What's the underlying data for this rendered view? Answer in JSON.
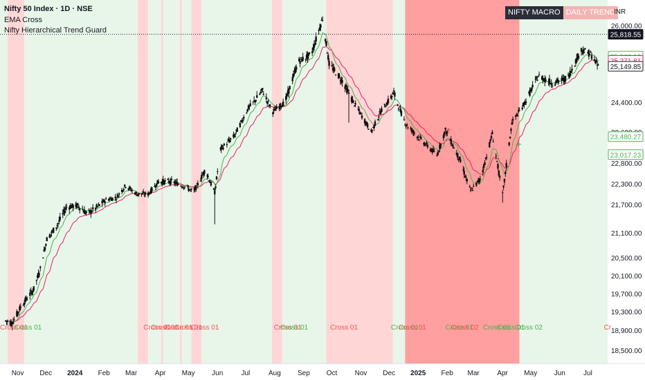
{
  "header": {
    "symbol_line": "Nifty 50 Index · 1D · NSE",
    "indicator_1": "EMA Cross",
    "indicator_2": "Nifty Hierarchical Trend Guard"
  },
  "badge": {
    "macro": "NIFTY MACRO",
    "daily": "DAILY TREND"
  },
  "currency": "INR",
  "colors": {
    "bull_bg": "#e8f5e9",
    "bear_bg": "#ffd6d6",
    "strong_bear_bg": "#ff9f9f",
    "up_candle": "#111111",
    "ema_fast": "#4caf50",
    "ema_slow": "#e91e63",
    "cross_bear_text": "#ef5350",
    "cross_bull_text": "#4caf50"
  },
  "chart_data": {
    "type": "candlestick",
    "y_axis": {
      "ticks": [
        26000,
        24400,
        23600,
        22800,
        22300,
        21700,
        21100,
        20500,
        20100,
        19700,
        19300,
        18900,
        18500
      ],
      "tick_labels": [
        "26,000.00",
        "24,400.00",
        "23,600.00",
        "22,800.00",
        "22,300.00",
        "21,700.00",
        "21,100.00",
        "20,500.00",
        "20,100.00",
        "19,700.00",
        "19,300.00",
        "18,900.00",
        "18,500.00"
      ]
    },
    "x_axis": {
      "labels": [
        "Nov",
        "Dec",
        "2024",
        "Feb",
        "Mar",
        "Apr",
        "May",
        "Jun",
        "Jul",
        "Aug",
        "Sep",
        "Oct",
        "Nov",
        "Dec",
        "2025",
        "Feb",
        "Mar",
        "Apr",
        "May",
        "Jun",
        "Jul"
      ],
      "bold": [
        "2024",
        "2025"
      ]
    },
    "price_tags": [
      {
        "value": "25,818.55",
        "price": 25818.55,
        "style": "dark"
      },
      {
        "value": "25,362.13",
        "price": 25362.13,
        "style": "green"
      },
      {
        "value": "25,271.81",
        "price": 25271.81,
        "style": "red"
      },
      {
        "value": "25,149.85",
        "price": 25149.85,
        "style": "outline"
      },
      {
        "value": "23,480.27",
        "price": 23480.27,
        "style": "green"
      },
      {
        "value": "23,017.23",
        "price": 23017.23,
        "style": "green"
      }
    ],
    "last_price": 25818.55,
    "price_path": [
      [
        "2023-10-26",
        19100
      ],
      [
        "2023-11-01",
        19050
      ],
      [
        "2023-11-10",
        19400
      ],
      [
        "2023-11-24",
        19800
      ],
      [
        "2023-12-01",
        20250
      ],
      [
        "2023-12-08",
        20950
      ],
      [
        "2023-12-20",
        21300
      ],
      [
        "2023-12-29",
        21650
      ],
      [
        "2024-01-10",
        21680
      ],
      [
        "2024-01-20",
        21500
      ],
      [
        "2024-01-31",
        21650
      ],
      [
        "2024-02-10",
        21850
      ],
      [
        "2024-02-20",
        21900
      ],
      [
        "2024-03-01",
        22250
      ],
      [
        "2024-03-13",
        22000
      ],
      [
        "2024-03-25",
        22000
      ],
      [
        "2024-04-05",
        22350
      ],
      [
        "2024-04-20",
        22350
      ],
      [
        "2024-05-05",
        22200
      ],
      [
        "2024-05-12",
        22050
      ],
      [
        "2024-05-25",
        22650
      ],
      [
        "2024-06-04",
        22050
      ],
      [
        "2024-06-10",
        23150
      ],
      [
        "2024-06-25",
        23500
      ],
      [
        "2024-07-10",
        24250
      ],
      [
        "2024-07-25",
        24650
      ],
      [
        "2024-08-05",
        24150
      ],
      [
        "2024-08-18",
        24400
      ],
      [
        "2024-09-01",
        25250
      ],
      [
        "2024-09-15",
        25400
      ],
      [
        "2024-09-27",
        26150
      ],
      [
        "2024-10-04",
        25200
      ],
      [
        "2024-10-18",
        24850
      ],
      [
        "2024-11-04",
        24200
      ],
      [
        "2024-11-18",
        23600
      ],
      [
        "2024-11-29",
        24200
      ],
      [
        "2024-12-12",
        24600
      ],
      [
        "2024-12-25",
        23800
      ],
      [
        "2025-01-10",
        23400
      ],
      [
        "2025-01-27",
        23000
      ],
      [
        "2025-02-05",
        23650
      ],
      [
        "2025-02-20",
        22900
      ],
      [
        "2025-03-04",
        22100
      ],
      [
        "2025-03-15",
        22450
      ],
      [
        "2025-03-27",
        23550
      ],
      [
        "2025-04-07",
        22000
      ],
      [
        "2025-04-17",
        23850
      ],
      [
        "2025-05-01",
        24400
      ],
      [
        "2025-05-15",
        24950
      ],
      [
        "2025-05-30",
        24800
      ],
      [
        "2025-06-15",
        24900
      ],
      [
        "2025-06-30",
        25500
      ],
      [
        "2025-07-10",
        25400
      ],
      [
        "2025-07-18",
        25150
      ]
    ],
    "spikes": [
      {
        "date": "2024-06-04",
        "low": 21280
      },
      {
        "date": "2024-10-26",
        "low": 23850
      },
      {
        "date": "2025-04-07",
        "low": 21750
      }
    ],
    "background_regimes": [
      {
        "from": "2023-10-19",
        "to": "2023-10-27",
        "regime": "bull"
      },
      {
        "from": "2023-10-27",
        "to": "2023-11-14",
        "regime": "bear"
      },
      {
        "from": "2023-11-14",
        "to": "2024-03-14",
        "regime": "bull"
      },
      {
        "from": "2024-03-14",
        "to": "2024-03-25",
        "regime": "bear"
      },
      {
        "from": "2024-03-25",
        "to": "2024-04-08",
        "regime": "bull"
      },
      {
        "from": "2024-04-08",
        "to": "2024-04-10",
        "regime": "bear"
      },
      {
        "from": "2024-04-10",
        "to": "2024-04-28",
        "regime": "bull"
      },
      {
        "from": "2024-04-28",
        "to": "2024-04-30",
        "regime": "bear"
      },
      {
        "from": "2024-04-30",
        "to": "2024-05-10",
        "regime": "bull"
      },
      {
        "from": "2024-05-10",
        "to": "2024-05-21",
        "regime": "bear"
      },
      {
        "from": "2024-05-21",
        "to": "2024-08-04",
        "regime": "bull"
      },
      {
        "from": "2024-08-04",
        "to": "2024-08-15",
        "regime": "bear"
      },
      {
        "from": "2024-08-15",
        "to": "2024-10-01",
        "regime": "bull"
      },
      {
        "from": "2024-10-01",
        "to": "2024-12-11",
        "regime": "bear"
      },
      {
        "from": "2024-12-11",
        "to": "2024-12-24",
        "regime": "bull"
      },
      {
        "from": "2024-12-24",
        "to": "2025-04-25",
        "regime": "strong_bear"
      },
      {
        "from": "2025-04-25",
        "to": "2025-07-28",
        "regime": "bull"
      }
    ],
    "annotations": [
      {
        "text": "Cross 01",
        "date": "2023-10-19",
        "color": "red"
      },
      {
        "text": "Cross 01",
        "date": "2023-11-03",
        "color": "green"
      },
      {
        "text": "Cross 01",
        "date": "2024-03-20",
        "color": "red"
      },
      {
        "text": "Cross 01",
        "date": "2024-03-28",
        "color": "red"
      },
      {
        "text": "Cross 01",
        "date": "2024-04-12",
        "color": "red"
      },
      {
        "text": "Cross 01",
        "date": "2024-04-22",
        "color": "red"
      },
      {
        "text": "Cross 01",
        "date": "2024-05-10",
        "color": "red"
      },
      {
        "text": "Cross 01",
        "date": "2024-08-06",
        "color": "red"
      },
      {
        "text": "Cross 01",
        "date": "2024-08-13",
        "color": "green"
      },
      {
        "text": "Cross 01",
        "date": "2024-10-05",
        "color": "red"
      },
      {
        "text": "Cross 01",
        "date": "2024-12-09",
        "color": "green"
      },
      {
        "text": "Cross 01",
        "date": "2024-12-17",
        "color": "red"
      },
      {
        "text": "Cross 01",
        "date": "2025-02-05",
        "color": "green"
      },
      {
        "text": "Cross 02",
        "date": "2025-02-11",
        "color": "red"
      },
      {
        "text": "Cross 01",
        "date": "2025-03-17",
        "color": "green"
      },
      {
        "text": "Cross 01",
        "date": "2025-04-01",
        "color": "green"
      },
      {
        "text": "Cross 02",
        "date": "2025-04-20",
        "color": "green"
      },
      {
        "text": "Cr",
        "date": "2025-07-24",
        "color": "red"
      }
    ],
    "markers": [
      {
        "date": "2025-02-08",
        "price": 23650,
        "color": "red"
      },
      {
        "date": "2025-04-24",
        "price": 23280,
        "color": "green"
      }
    ]
  }
}
